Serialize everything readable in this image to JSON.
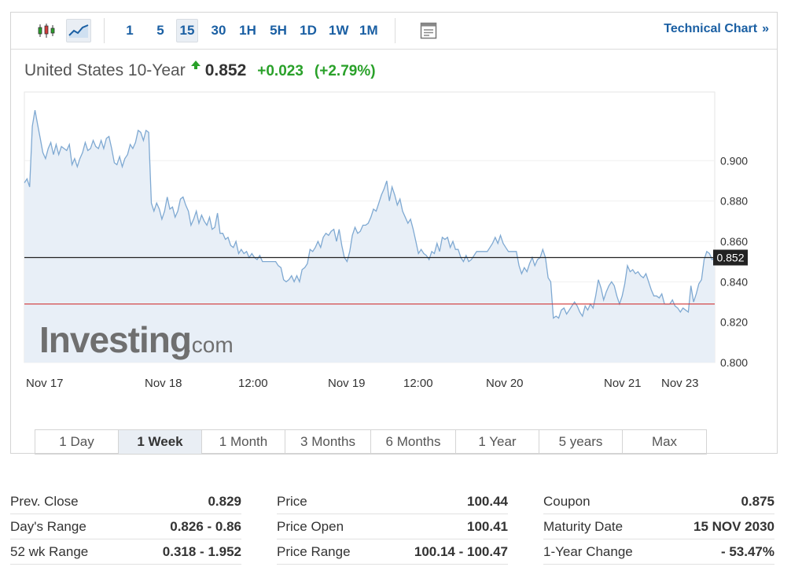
{
  "toolbar": {
    "intervals": [
      "1",
      "5",
      "15",
      "30",
      "1H",
      "5H",
      "1D",
      "1W",
      "1M"
    ],
    "active_interval": "15",
    "technical_chart_label": "Technical Chart",
    "technical_chart_arrows": "»"
  },
  "instrument": {
    "name": "United States 10-Year",
    "last": "0.852",
    "change": "+0.023",
    "change_pct": "(+2.79%)",
    "direction": "up"
  },
  "watermark": {
    "brand": "Investing",
    "suffix": ".com"
  },
  "colors": {
    "line": "#7fa9d2",
    "area": "#e8eff7",
    "up": "#2aa12a",
    "prev_close_line": "#d23a3a",
    "current_line": "#222222",
    "link": "#1a5fa3"
  },
  "chart_data": {
    "type": "area",
    "x_labels": [
      "Nov 17",
      "Nov 18",
      "12:00",
      "Nov 19",
      "12:00",
      "Nov 20",
      "Nov 21",
      "Nov 23"
    ],
    "y_ticks": [
      "0.900",
      "0.880",
      "0.860",
      "0.840",
      "0.820",
      "0.800"
    ],
    "ylim": [
      0.8,
      0.934
    ],
    "current_value": 0.852,
    "current_label": "0.852",
    "prev_close": 0.829,
    "grid": true,
    "values": [
      0.889,
      0.891,
      0.887,
      0.917,
      0.925,
      0.918,
      0.911,
      0.904,
      0.901,
      0.906,
      0.909,
      0.903,
      0.908,
      0.903,
      0.907,
      0.906,
      0.905,
      0.908,
      0.898,
      0.901,
      0.897,
      0.901,
      0.904,
      0.909,
      0.905,
      0.906,
      0.91,
      0.907,
      0.906,
      0.91,
      0.906,
      0.911,
      0.912,
      0.906,
      0.899,
      0.898,
      0.902,
      0.897,
      0.901,
      0.903,
      0.908,
      0.906,
      0.909,
      0.915,
      0.914,
      0.91,
      0.915,
      0.914,
      0.879,
      0.875,
      0.879,
      0.876,
      0.871,
      0.875,
      0.882,
      0.876,
      0.877,
      0.872,
      0.875,
      0.881,
      0.882,
      0.878,
      0.875,
      0.868,
      0.871,
      0.875,
      0.869,
      0.873,
      0.87,
      0.868,
      0.872,
      0.866,
      0.867,
      0.874,
      0.864,
      0.864,
      0.861,
      0.862,
      0.858,
      0.857,
      0.86,
      0.854,
      0.856,
      0.854,
      0.855,
      0.852,
      0.854,
      0.852,
      0.851,
      0.853,
      0.85,
      0.85,
      0.85,
      0.85,
      0.85,
      0.85,
      0.848,
      0.847,
      0.841,
      0.84,
      0.841,
      0.843,
      0.84,
      0.843,
      0.84,
      0.846,
      0.847,
      0.849,
      0.856,
      0.855,
      0.857,
      0.86,
      0.857,
      0.862,
      0.864,
      0.863,
      0.865,
      0.866,
      0.86,
      0.866,
      0.858,
      0.852,
      0.85,
      0.855,
      0.863,
      0.867,
      0.864,
      0.865,
      0.868,
      0.868,
      0.869,
      0.872,
      0.876,
      0.875,
      0.879,
      0.883,
      0.886,
      0.89,
      0.88,
      0.887,
      0.883,
      0.878,
      0.881,
      0.875,
      0.872,
      0.869,
      0.871,
      0.866,
      0.86,
      0.854,
      0.856,
      0.854,
      0.853,
      0.851,
      0.855,
      0.854,
      0.859,
      0.855,
      0.862,
      0.861,
      0.862,
      0.857,
      0.86,
      0.856,
      0.856,
      0.852,
      0.85,
      0.853,
      0.85,
      0.851,
      0.853,
      0.855,
      0.855,
      0.855,
      0.855,
      0.855,
      0.857,
      0.859,
      0.862,
      0.859,
      0.863,
      0.859,
      0.857,
      0.855,
      0.855,
      0.855,
      0.855,
      0.848,
      0.844,
      0.847,
      0.845,
      0.849,
      0.852,
      0.848,
      0.851,
      0.852,
      0.856,
      0.852,
      0.842,
      0.84,
      0.822,
      0.823,
      0.822,
      0.826,
      0.827,
      0.824,
      0.826,
      0.828,
      0.83,
      0.828,
      0.825,
      0.823,
      0.828,
      0.826,
      0.829,
      0.827,
      0.833,
      0.841,
      0.837,
      0.831,
      0.835,
      0.838,
      0.84,
      0.838,
      0.833,
      0.829,
      0.833,
      0.839,
      0.848,
      0.845,
      0.846,
      0.844,
      0.845,
      0.843,
      0.842,
      0.844,
      0.84,
      0.836,
      0.833,
      0.833,
      0.832,
      0.834,
      0.829,
      0.829,
      0.829,
      0.831,
      0.828,
      0.827,
      0.825,
      0.827,
      0.826,
      0.825,
      0.838,
      0.83,
      0.834,
      0.839,
      0.841,
      0.851,
      0.855,
      0.854,
      0.851,
      0.852
    ]
  },
  "ranges": {
    "items": [
      "1 Day",
      "1 Week",
      "1 Month",
      "3 Months",
      "6 Months",
      "1 Year",
      "5 years",
      "Max"
    ],
    "active": "1 Week"
  },
  "stats": [
    [
      {
        "label": "Prev. Close",
        "value": "0.829"
      },
      {
        "label": "Day's Range",
        "value": "0.826 - 0.86"
      },
      {
        "label": "52 wk Range",
        "value": "0.318 - 1.952"
      }
    ],
    [
      {
        "label": "Price",
        "value": "100.44"
      },
      {
        "label": "Price Open",
        "value": "100.41"
      },
      {
        "label": "Price Range",
        "value": "100.14 - 100.47"
      }
    ],
    [
      {
        "label": "Coupon",
        "value": "0.875"
      },
      {
        "label": "Maturity Date",
        "value": "15 NOV 2030"
      },
      {
        "label": "1-Year Change",
        "value": "- 53.47%"
      }
    ]
  ]
}
